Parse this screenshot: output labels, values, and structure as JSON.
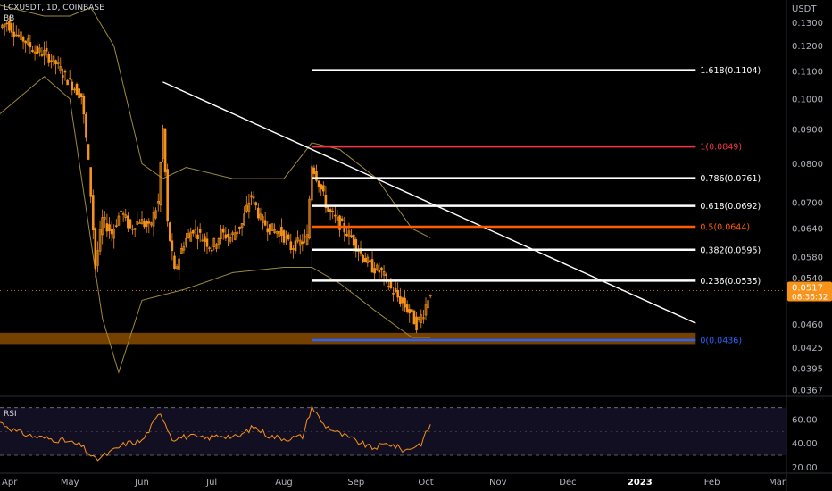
{
  "header": {
    "symbol_line": "LCXUSDT, 1D, COINBASE",
    "indicator_tag": "BB"
  },
  "rsi_label": "RSI",
  "colors": {
    "candle": "#f7931a",
    "bollinger": "#9c8a3a",
    "trendline": "#ffffff",
    "support_zone": "#8a4c00",
    "fib_1": "#f23645",
    "fib_05": "#ff5d00",
    "fib_0": "#2962ff",
    "fib_default": "#ffffff",
    "price_badge": "#f7931a",
    "rsi_line": "#f7931a"
  },
  "chart_data": [
    {
      "type": "candlestick",
      "title": "LCXUSDT, 1D, COINBASE",
      "ylabel": "USDT",
      "y_scale": "log",
      "ylim": [
        0.0367,
        0.138
      ],
      "xlim": [
        "2022-04-01",
        "2023-03-05"
      ],
      "x_ticks": [
        {
          "date": "2022-04-01",
          "label": "Apr"
        },
        {
          "date": "2022-05-01",
          "label": "May"
        },
        {
          "date": "2022-06-01",
          "label": "Jun"
        },
        {
          "date": "2022-07-01",
          "label": "Jul"
        },
        {
          "date": "2022-08-01",
          "label": "Aug"
        },
        {
          "date": "2022-09-01",
          "label": "Sep"
        },
        {
          "date": "2022-10-01",
          "label": "Oct"
        },
        {
          "date": "2022-11-01",
          "label": "Nov"
        },
        {
          "date": "2022-12-01",
          "label": "Dec"
        },
        {
          "date": "2023-01-01",
          "label": "2023"
        },
        {
          "date": "2023-02-01",
          "label": "Feb"
        },
        {
          "date": "2023-03-01",
          "label": "Mar"
        }
      ],
      "y_ticks": [
        0.13,
        0.12,
        0.11,
        0.1,
        0.09,
        0.08,
        0.07,
        0.064,
        0.058,
        0.054,
        0.046,
        0.0425,
        0.0395,
        0.0367
      ],
      "y_tick_labels": [
        "0.1300",
        "0.1200",
        "0.1100",
        "0.1000",
        "0.0900",
        "0.0800",
        "0.0700",
        "0.0640",
        "0.0580",
        "0.0540",
        "0.0460",
        "0.0425",
        "0.0395",
        "0.0367"
      ],
      "bold_ticks": [
        "2023"
      ],
      "price_path": [
        [
          "2022-04-01",
          0.128
        ],
        [
          "2022-04-04",
          0.13
        ],
        [
          "2022-04-08",
          0.125
        ],
        [
          "2022-04-12",
          0.122
        ],
        [
          "2022-04-16",
          0.118
        ],
        [
          "2022-04-20",
          0.117
        ],
        [
          "2022-04-25",
          0.113
        ],
        [
          "2022-04-29",
          0.108
        ],
        [
          "2022-05-03",
          0.104
        ],
        [
          "2022-05-06",
          0.101
        ],
        [
          "2022-05-09",
          0.08
        ],
        [
          "2022-05-12",
          0.056
        ],
        [
          "2022-05-15",
          0.066
        ],
        [
          "2022-05-19",
          0.063
        ],
        [
          "2022-05-23",
          0.068
        ],
        [
          "2022-05-27",
          0.064
        ],
        [
          "2022-05-31",
          0.066
        ],
        [
          "2022-06-04",
          0.064
        ],
        [
          "2022-06-08",
          0.07
        ],
        [
          "2022-06-10",
          0.09
        ],
        [
          "2022-06-12",
          0.065
        ],
        [
          "2022-06-15",
          0.055
        ],
        [
          "2022-06-19",
          0.061
        ],
        [
          "2022-06-23",
          0.064
        ],
        [
          "2022-06-27",
          0.062
        ],
        [
          "2022-07-01",
          0.06
        ],
        [
          "2022-07-05",
          0.063
        ],
        [
          "2022-07-09",
          0.062
        ],
        [
          "2022-07-14",
          0.065
        ],
        [
          "2022-07-18",
          0.072
        ],
        [
          "2022-07-22",
          0.066
        ],
        [
          "2022-07-26",
          0.064
        ],
        [
          "2022-07-31",
          0.063
        ],
        [
          "2022-08-04",
          0.06
        ],
        [
          "2022-08-08",
          0.061
        ],
        [
          "2022-08-11",
          0.062
        ],
        [
          "2022-08-13",
          0.08
        ],
        [
          "2022-08-16",
          0.075
        ],
        [
          "2022-08-20",
          0.068
        ],
        [
          "2022-08-25",
          0.065
        ],
        [
          "2022-08-30",
          0.062
        ],
        [
          "2022-09-04",
          0.058
        ],
        [
          "2022-09-08",
          0.056
        ],
        [
          "2022-09-12",
          0.055
        ],
        [
          "2022-09-16",
          0.052
        ],
        [
          "2022-09-20",
          0.05
        ],
        [
          "2022-09-24",
          0.048
        ],
        [
          "2022-09-27",
          0.046
        ],
        [
          "2022-09-30",
          0.048
        ],
        [
          "2022-10-03",
          0.0517
        ]
      ],
      "bollinger_upper": [
        [
          "2022-04-01",
          0.138
        ],
        [
          "2022-04-20",
          0.133
        ],
        [
          "2022-05-01",
          0.133
        ],
        [
          "2022-05-10",
          0.137
        ],
        [
          "2022-05-20",
          0.12
        ],
        [
          "2022-06-01",
          0.08
        ],
        [
          "2022-06-10",
          0.076
        ],
        [
          "2022-06-20",
          0.079
        ],
        [
          "2022-07-10",
          0.076
        ],
        [
          "2022-08-01",
          0.076
        ],
        [
          "2022-08-13",
          0.086
        ],
        [
          "2022-08-25",
          0.084
        ],
        [
          "2022-09-10",
          0.076
        ],
        [
          "2022-09-25",
          0.064
        ],
        [
          "2022-10-03",
          0.062
        ]
      ],
      "bollinger_lower": [
        [
          "2022-04-01",
          0.095
        ],
        [
          "2022-04-20",
          0.108
        ],
        [
          "2022-05-01",
          0.1
        ],
        [
          "2022-05-15",
          0.047
        ],
        [
          "2022-05-22",
          0.039
        ],
        [
          "2022-06-01",
          0.05
        ],
        [
          "2022-06-20",
          0.052
        ],
        [
          "2022-07-10",
          0.055
        ],
        [
          "2022-08-01",
          0.056
        ],
        [
          "2022-08-13",
          0.056
        ],
        [
          "2022-08-25",
          0.053
        ],
        [
          "2022-09-10",
          0.048
        ],
        [
          "2022-09-25",
          0.044
        ],
        [
          "2022-10-03",
          0.044
        ]
      ],
      "trendline": {
        "from": [
          "2022-06-10",
          0.106
        ],
        "to": [
          "2023-01-25",
          0.0462
        ]
      },
      "support_zone": {
        "x_from": "2022-04-01",
        "x_to": "2023-01-25",
        "y_low": 0.043,
        "y_high": 0.0447
      },
      "fib_start_date": "2022-08-13",
      "fib_end_date": "2023-01-25",
      "fib_levels": [
        {
          "label": "1.618(0.1104)",
          "value": 0.1104,
          "color": "#ffffff"
        },
        {
          "label": "1(0.0849)",
          "value": 0.0849,
          "color": "#f23645"
        },
        {
          "label": "0.786(0.0761)",
          "value": 0.0761,
          "color": "#ffffff"
        },
        {
          "label": "0.618(0.0692)",
          "value": 0.0692,
          "color": "#ffffff"
        },
        {
          "label": "0.5(0.0644)",
          "value": 0.0644,
          "color": "#ff5d00"
        },
        {
          "label": "0.382(0.0595)",
          "value": 0.0595,
          "color": "#ffffff"
        },
        {
          "label": "0.236(0.0535)",
          "value": 0.0535,
          "color": "#ffffff"
        },
        {
          "label": "0(0.0436)",
          "value": 0.0436,
          "color": "#2962ff"
        }
      ],
      "last_price": {
        "value": 0.0517,
        "label": "0.0517",
        "countdown": "08:36:32"
      }
    },
    {
      "type": "line",
      "title": "RSI",
      "ylim": [
        18,
        75
      ],
      "y_ticks": [
        60,
        40,
        20
      ],
      "y_tick_labels": [
        "60.00",
        "40.00",
        "20.00"
      ],
      "bands": [
        70,
        30
      ],
      "midline": 50,
      "values": [
        [
          "2022-04-01",
          58
        ],
        [
          "2022-04-08",
          50
        ],
        [
          "2022-04-15",
          46
        ],
        [
          "2022-04-22",
          44
        ],
        [
          "2022-04-29",
          42
        ],
        [
          "2022-05-06",
          38
        ],
        [
          "2022-05-12",
          26
        ],
        [
          "2022-05-18",
          32
        ],
        [
          "2022-05-25",
          40
        ],
        [
          "2022-06-01",
          42
        ],
        [
          "2022-06-09",
          66
        ],
        [
          "2022-06-14",
          44
        ],
        [
          "2022-06-21",
          46
        ],
        [
          "2022-06-28",
          44
        ],
        [
          "2022-07-05",
          47
        ],
        [
          "2022-07-12",
          45
        ],
        [
          "2022-07-19",
          54
        ],
        [
          "2022-07-26",
          46
        ],
        [
          "2022-08-02",
          44
        ],
        [
          "2022-08-09",
          46
        ],
        [
          "2022-08-13",
          71
        ],
        [
          "2022-08-18",
          56
        ],
        [
          "2022-08-25",
          48
        ],
        [
          "2022-09-01",
          42
        ],
        [
          "2022-09-08",
          36
        ],
        [
          "2022-09-15",
          40
        ],
        [
          "2022-09-22",
          34
        ],
        [
          "2022-09-29",
          40
        ],
        [
          "2022-10-03",
          56
        ]
      ]
    }
  ]
}
